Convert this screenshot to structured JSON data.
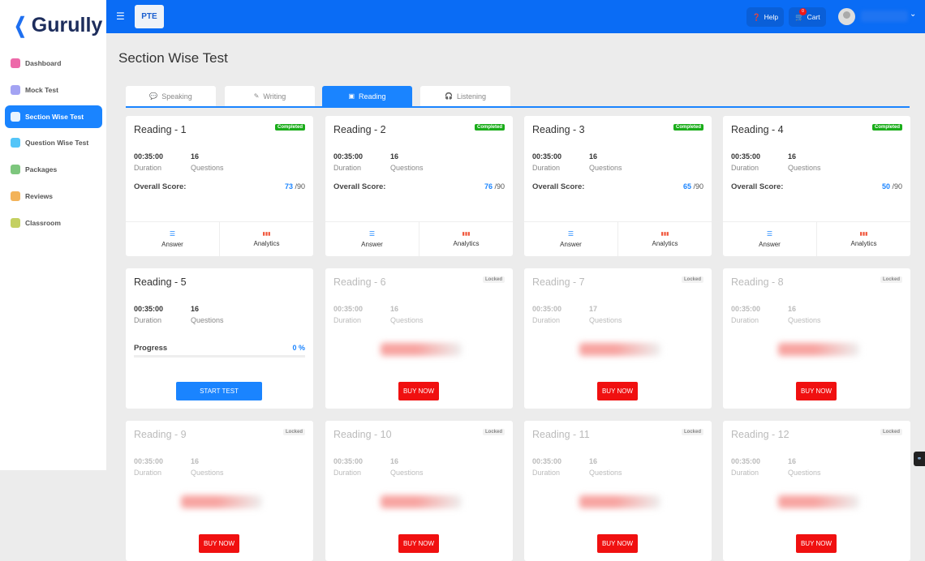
{
  "brand": {
    "name": "Gurully"
  },
  "sidebar": {
    "items": [
      {
        "label": "Dashboard",
        "icon": "globe-icon",
        "color": "#e84393",
        "active": false
      },
      {
        "label": "Mock Test",
        "icon": "document-icon",
        "color": "#8c8cf0",
        "active": false
      },
      {
        "label": "Section Wise Test",
        "icon": "document-icon",
        "color": "#ffffff",
        "active": true
      },
      {
        "label": "Question Wise Test",
        "icon": "presentation-icon",
        "color": "#29b6f6",
        "active": false
      },
      {
        "label": "Packages",
        "icon": "package-icon",
        "color": "#5cb85c",
        "active": false
      },
      {
        "label": "Reviews",
        "icon": "award-icon",
        "color": "#f0a030",
        "active": false
      },
      {
        "label": "Classroom",
        "icon": "classroom-icon",
        "color": "#b5c43a",
        "active": false
      }
    ]
  },
  "header": {
    "exam": "PTE",
    "help": "Help",
    "cart": "Cart",
    "cart_count": "0"
  },
  "page": {
    "title": "Section Wise Test"
  },
  "tabs": [
    {
      "label": "Speaking",
      "icon": "chat-icon",
      "glyph": "💬",
      "active": false
    },
    {
      "label": "Writing",
      "icon": "pen-icon",
      "glyph": "✎",
      "active": false
    },
    {
      "label": "Reading",
      "icon": "book-icon",
      "glyph": "▣",
      "active": true
    },
    {
      "label": "Listening",
      "icon": "headphones-icon",
      "glyph": "🎧",
      "active": false
    }
  ],
  "labels": {
    "duration": "Duration",
    "questions": "Questions",
    "overall_score": "Overall Score:",
    "score_max": "/90",
    "answer": "Answer",
    "analytics": "Analytics",
    "progress": "Progress",
    "start": "START TEST",
    "buy": "BUY NOW",
    "completed": "Completed",
    "locked": "Locked"
  },
  "tests": [
    {
      "title": "Reading - 1",
      "duration": "00:35:00",
      "questions": "16",
      "status": "completed",
      "score": "73"
    },
    {
      "title": "Reading - 2",
      "duration": "00:35:00",
      "questions": "16",
      "status": "completed",
      "score": "76"
    },
    {
      "title": "Reading - 3",
      "duration": "00:35:00",
      "questions": "16",
      "status": "completed",
      "score": "65"
    },
    {
      "title": "Reading - 4",
      "duration": "00:35:00",
      "questions": "16",
      "status": "completed",
      "score": "50"
    },
    {
      "title": "Reading - 5",
      "duration": "00:35:00",
      "questions": "16",
      "status": "open",
      "progress": "0 %",
      "progress_value": 0
    },
    {
      "title": "Reading - 6",
      "duration": "00:35:00",
      "questions": "16",
      "status": "locked"
    },
    {
      "title": "Reading - 7",
      "duration": "00:35:00",
      "questions": "17",
      "status": "locked"
    },
    {
      "title": "Reading - 8",
      "duration": "00:35:00",
      "questions": "16",
      "status": "locked"
    },
    {
      "title": "Reading - 9",
      "duration": "00:35:00",
      "questions": "16",
      "status": "locked"
    },
    {
      "title": "Reading - 10",
      "duration": "00:35:00",
      "questions": "16",
      "status": "locked"
    },
    {
      "title": "Reading - 11",
      "duration": "00:35:00",
      "questions": "16",
      "status": "locked"
    },
    {
      "title": "Reading - 12",
      "duration": "00:35:00",
      "questions": "16",
      "status": "locked"
    }
  ]
}
